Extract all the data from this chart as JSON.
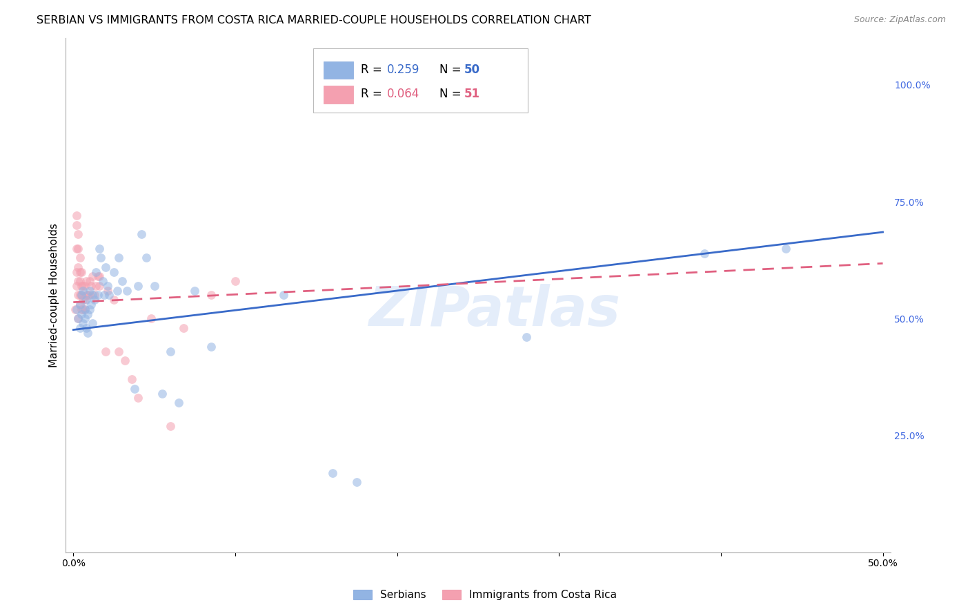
{
  "title": "SERBIAN VS IMMIGRANTS FROM COSTA RICA MARRIED-COUPLE HOUSEHOLDS CORRELATION CHART",
  "source": "Source: ZipAtlas.com",
  "ylabel": "Married-couple Households",
  "watermark": "ZIPatlas",
  "legend_blue_r": "0.259",
  "legend_blue_n": "50",
  "legend_pink_r": "0.064",
  "legend_pink_n": "51",
  "legend_label_blue": "Serbians",
  "legend_label_pink": "Immigrants from Costa Rica",
  "blue_color": "#92B4E3",
  "pink_color": "#F4A0B0",
  "blue_line_color": "#3A6BC9",
  "pink_line_color": "#E06080",
  "blue_scatter": [
    [
      0.002,
      0.52
    ],
    [
      0.003,
      0.5
    ],
    [
      0.004,
      0.48
    ],
    [
      0.004,
      0.53
    ],
    [
      0.005,
      0.55
    ],
    [
      0.005,
      0.51
    ],
    [
      0.006,
      0.49
    ],
    [
      0.006,
      0.56
    ],
    [
      0.007,
      0.5
    ],
    [
      0.007,
      0.52
    ],
    [
      0.008,
      0.54
    ],
    [
      0.008,
      0.48
    ],
    [
      0.009,
      0.51
    ],
    [
      0.009,
      0.47
    ],
    [
      0.01,
      0.56
    ],
    [
      0.01,
      0.52
    ],
    [
      0.011,
      0.53
    ],
    [
      0.012,
      0.55
    ],
    [
      0.012,
      0.49
    ],
    [
      0.013,
      0.54
    ],
    [
      0.014,
      0.6
    ],
    [
      0.015,
      0.55
    ],
    [
      0.016,
      0.65
    ],
    [
      0.017,
      0.63
    ],
    [
      0.018,
      0.58
    ],
    [
      0.019,
      0.55
    ],
    [
      0.02,
      0.61
    ],
    [
      0.021,
      0.57
    ],
    [
      0.022,
      0.55
    ],
    [
      0.025,
      0.6
    ],
    [
      0.027,
      0.56
    ],
    [
      0.028,
      0.63
    ],
    [
      0.03,
      0.58
    ],
    [
      0.033,
      0.56
    ],
    [
      0.038,
      0.35
    ],
    [
      0.04,
      0.57
    ],
    [
      0.042,
      0.68
    ],
    [
      0.045,
      0.63
    ],
    [
      0.05,
      0.57
    ],
    [
      0.055,
      0.34
    ],
    [
      0.06,
      0.43
    ],
    [
      0.065,
      0.32
    ],
    [
      0.075,
      0.56
    ],
    [
      0.085,
      0.44
    ],
    [
      0.13,
      0.55
    ],
    [
      0.16,
      0.17
    ],
    [
      0.175,
      0.15
    ],
    [
      0.28,
      0.46
    ],
    [
      0.39,
      0.64
    ],
    [
      0.44,
      0.65
    ]
  ],
  "pink_scatter": [
    [
      0.001,
      0.52
    ],
    [
      0.002,
      0.57
    ],
    [
      0.002,
      0.6
    ],
    [
      0.002,
      0.65
    ],
    [
      0.002,
      0.7
    ],
    [
      0.002,
      0.72
    ],
    [
      0.003,
      0.5
    ],
    [
      0.003,
      0.55
    ],
    [
      0.003,
      0.58
    ],
    [
      0.003,
      0.61
    ],
    [
      0.003,
      0.65
    ],
    [
      0.003,
      0.68
    ],
    [
      0.004,
      0.53
    ],
    [
      0.004,
      0.55
    ],
    [
      0.004,
      0.58
    ],
    [
      0.004,
      0.6
    ],
    [
      0.004,
      0.63
    ],
    [
      0.005,
      0.52
    ],
    [
      0.005,
      0.55
    ],
    [
      0.005,
      0.57
    ],
    [
      0.005,
      0.6
    ],
    [
      0.006,
      0.52
    ],
    [
      0.006,
      0.54
    ],
    [
      0.006,
      0.57
    ],
    [
      0.007,
      0.52
    ],
    [
      0.007,
      0.54
    ],
    [
      0.007,
      0.57
    ],
    [
      0.008,
      0.55
    ],
    [
      0.008,
      0.58
    ],
    [
      0.009,
      0.55
    ],
    [
      0.01,
      0.58
    ],
    [
      0.01,
      0.55
    ],
    [
      0.011,
      0.57
    ],
    [
      0.012,
      0.59
    ],
    [
      0.013,
      0.55
    ],
    [
      0.014,
      0.57
    ],
    [
      0.015,
      0.59
    ],
    [
      0.016,
      0.57
    ],
    [
      0.016,
      0.59
    ],
    [
      0.02,
      0.43
    ],
    [
      0.021,
      0.56
    ],
    [
      0.025,
      0.54
    ],
    [
      0.028,
      0.43
    ],
    [
      0.032,
      0.41
    ],
    [
      0.036,
      0.37
    ],
    [
      0.04,
      0.33
    ],
    [
      0.048,
      0.5
    ],
    [
      0.06,
      0.27
    ],
    [
      0.068,
      0.48
    ],
    [
      0.085,
      0.55
    ],
    [
      0.1,
      0.58
    ]
  ],
  "blue_trend_x": [
    0.0,
    0.5
  ],
  "blue_trend_y": [
    0.476,
    0.685
  ],
  "pink_trend_x": [
    0.0,
    0.5
  ],
  "pink_trend_y": [
    0.535,
    0.618
  ],
  "xlim": [
    -0.005,
    0.505
  ],
  "ylim": [
    0.0,
    1.1
  ],
  "yticks": [
    0.25,
    0.5,
    0.75,
    1.0
  ],
  "ytick_labels": [
    "25.0%",
    "50.0%",
    "75.0%",
    "100.0%"
  ],
  "xticks": [
    0.0,
    0.1,
    0.2,
    0.3,
    0.4,
    0.5
  ],
  "xtick_labels": [
    "0.0%",
    "",
    "",
    "",
    "",
    "50.0%"
  ],
  "grid_color": "#CCCCCC",
  "background_color": "#FFFFFF",
  "title_fontsize": 11.5,
  "ylabel_fontsize": 11,
  "tick_label_fontsize": 10,
  "scatter_size": 85,
  "scatter_alpha": 0.55,
  "line_width": 2.0
}
